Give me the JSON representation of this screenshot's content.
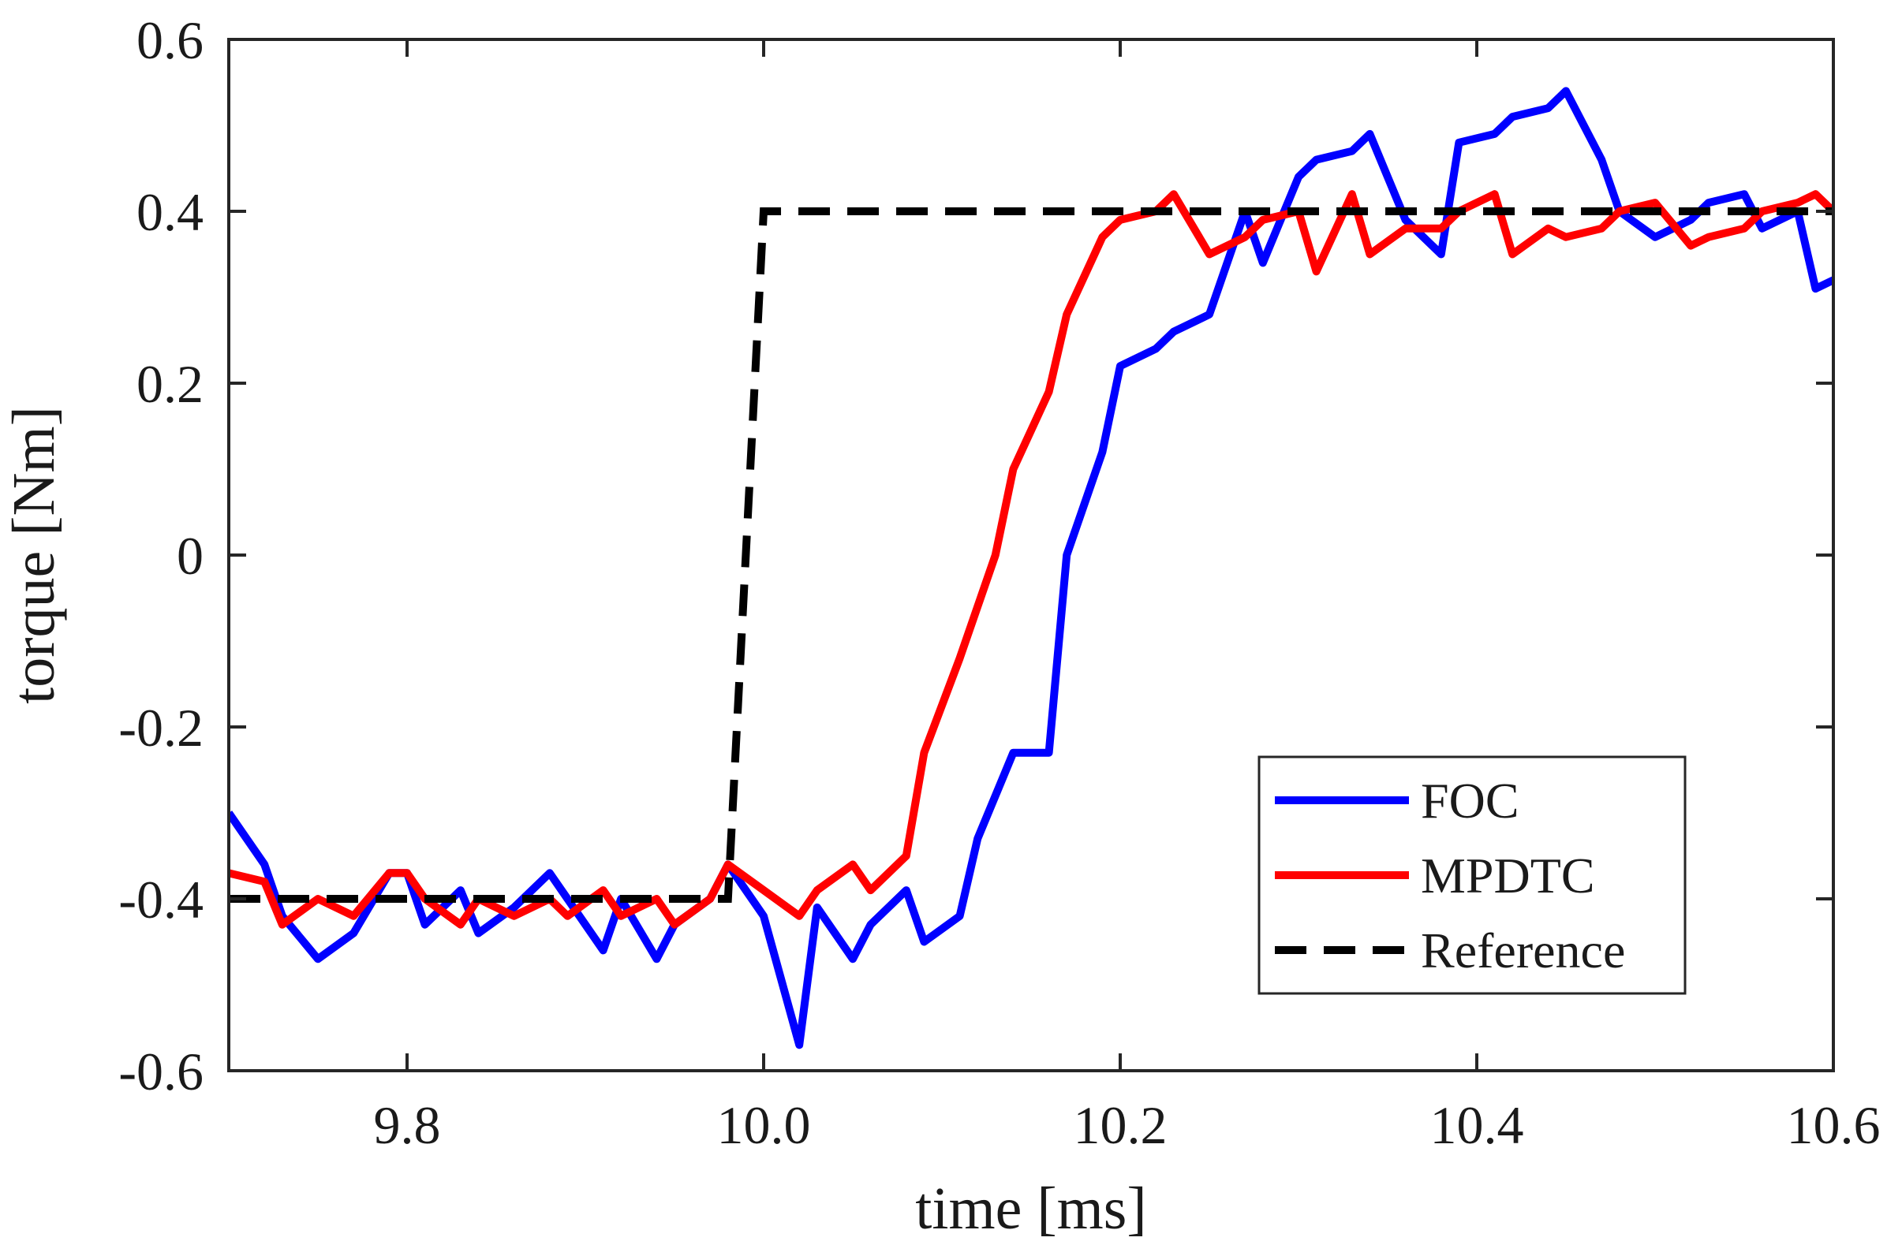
{
  "chart_data": {
    "type": "line",
    "xlabel": "time [ms]",
    "ylabel": "torque [Nm]",
    "xlim": [
      9.7,
      10.6
    ],
    "ylim": [
      -0.6,
      0.6
    ],
    "xticks": [
      9.8,
      10.0,
      10.2,
      10.4,
      10.6
    ],
    "xtick_labels": [
      "9.8",
      "10.0",
      "10.2",
      "10.4",
      "10.6"
    ],
    "yticks": [
      -0.6,
      -0.4,
      -0.2,
      0,
      0.2,
      0.4,
      0.6
    ],
    "ytick_labels": [
      "-0.6",
      "-0.4",
      "-0.2",
      "0",
      "0.2",
      "0.4",
      "0.6"
    ],
    "grid": false,
    "legend_position": "lower-right",
    "series": [
      {
        "name": "FOC",
        "color": "#0000ff",
        "style": "solid",
        "x": [
          9.7,
          9.72,
          9.73,
          9.75,
          9.77,
          9.79,
          9.8,
          9.81,
          9.83,
          9.84,
          9.86,
          9.88,
          9.89,
          9.91,
          9.92,
          9.94,
          9.95,
          9.97,
          9.98,
          10.0,
          10.02,
          10.03,
          10.05,
          10.06,
          10.08,
          10.09,
          10.11,
          10.12,
          10.14,
          10.16,
          10.17,
          10.19,
          10.2,
          10.22,
          10.23,
          10.25,
          10.27,
          10.28,
          10.3,
          10.31,
          10.33,
          10.34,
          10.36,
          10.38,
          10.39,
          10.41,
          10.42,
          10.44,
          10.45,
          10.47,
          10.48,
          10.5,
          10.52,
          10.53,
          10.55,
          10.56,
          10.58,
          10.59,
          10.6
        ],
        "y": [
          -0.3,
          -0.36,
          -0.42,
          -0.47,
          -0.44,
          -0.37,
          -0.37,
          -0.43,
          -0.39,
          -0.44,
          -0.41,
          -0.37,
          -0.4,
          -0.46,
          -0.4,
          -0.47,
          -0.43,
          -0.4,
          -0.36,
          -0.42,
          -0.57,
          -0.41,
          -0.47,
          -0.43,
          -0.39,
          -0.45,
          -0.42,
          -0.33,
          -0.23,
          -0.23,
          0.0,
          0.12,
          0.22,
          0.24,
          0.26,
          0.28,
          0.4,
          0.34,
          0.44,
          0.46,
          0.47,
          0.49,
          0.39,
          0.35,
          0.48,
          0.49,
          0.51,
          0.52,
          0.54,
          0.46,
          0.4,
          0.37,
          0.39,
          0.41,
          0.42,
          0.38,
          0.4,
          0.31,
          0.32
        ]
      },
      {
        "name": "MPDTC",
        "color": "#ff0000",
        "style": "solid",
        "x": [
          9.7,
          9.72,
          9.73,
          9.75,
          9.77,
          9.79,
          9.8,
          9.81,
          9.83,
          9.84,
          9.86,
          9.88,
          9.89,
          9.91,
          9.92,
          9.94,
          9.95,
          9.97,
          9.98,
          10.0,
          10.02,
          10.03,
          10.05,
          10.06,
          10.08,
          10.09,
          10.11,
          10.12,
          10.13,
          10.14,
          10.16,
          10.17,
          10.19,
          10.2,
          10.22,
          10.23,
          10.25,
          10.27,
          10.28,
          10.3,
          10.31,
          10.33,
          10.34,
          10.36,
          10.38,
          10.39,
          10.41,
          10.42,
          10.44,
          10.45,
          10.47,
          10.48,
          10.5,
          10.52,
          10.53,
          10.55,
          10.56,
          10.58,
          10.59,
          10.6
        ],
        "y": [
          -0.37,
          -0.38,
          -0.43,
          -0.4,
          -0.42,
          -0.37,
          -0.37,
          -0.4,
          -0.43,
          -0.4,
          -0.42,
          -0.4,
          -0.42,
          -0.39,
          -0.42,
          -0.4,
          -0.43,
          -0.4,
          -0.36,
          -0.39,
          -0.42,
          -0.39,
          -0.36,
          -0.39,
          -0.35,
          -0.23,
          -0.12,
          -0.06,
          0.0,
          0.1,
          0.19,
          0.28,
          0.37,
          0.39,
          0.4,
          0.42,
          0.35,
          0.37,
          0.39,
          0.4,
          0.33,
          0.42,
          0.35,
          0.38,
          0.38,
          0.4,
          0.42,
          0.35,
          0.38,
          0.37,
          0.38,
          0.4,
          0.41,
          0.36,
          0.37,
          0.38,
          0.4,
          0.41,
          0.42,
          0.4
        ]
      },
      {
        "name": "Reference",
        "color": "#000000",
        "style": "dashed",
        "x": [
          9.7,
          9.98,
          9.99,
          10.0,
          10.6
        ],
        "y": [
          -0.4,
          -0.4,
          0.0,
          0.4,
          0.4
        ]
      }
    ]
  }
}
